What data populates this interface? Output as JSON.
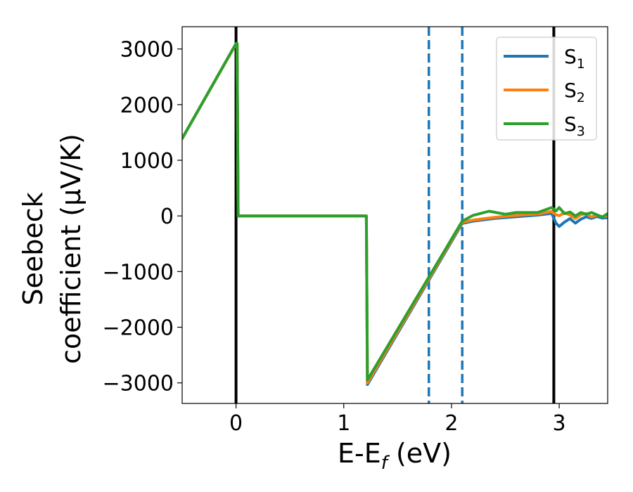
{
  "chart_data": {
    "type": "line",
    "title": "",
    "xlabel": "E-E",
    "xlabel_sub": "f",
    "xlabel_unit": " (eV)",
    "ylabel_line1": "Seebeck",
    "ylabel_line2": "coefficient  (μV/K)",
    "xlim": [
      -0.5,
      3.45
    ],
    "ylim": [
      -3370,
      3400
    ],
    "xticks": [
      0,
      1,
      2,
      3
    ],
    "xtick_labels": [
      "0",
      "1",
      "2",
      "3"
    ],
    "yticks": [
      -3000,
      -2000,
      -1000,
      0,
      1000,
      2000,
      3000
    ],
    "ytick_labels": [
      "−3000",
      "−2000",
      "−1000",
      "0",
      "1000",
      "2000",
      "3000"
    ],
    "grid": false,
    "legend_position": "upper-right",
    "series": [
      {
        "name": "S",
        "sub": "1",
        "color": "#1f77b4",
        "x": [
          -0.5,
          0.0,
          0.01,
          0.02,
          1.21,
          1.22,
          2.1,
          2.2,
          2.4,
          2.6,
          2.8,
          2.93,
          2.97,
          3.0,
          3.05,
          3.1,
          3.15,
          3.2,
          3.25,
          3.3,
          3.35,
          3.4,
          3.45
        ],
        "y": [
          1390,
          3090,
          3090,
          0,
          0,
          -3030,
          -135,
          -95,
          -45,
          -15,
          15,
          45,
          -130,
          -190,
          -110,
          -50,
          -130,
          -60,
          -15,
          -45,
          -10,
          -40,
          -30
        ]
      },
      {
        "name": "S",
        "sub": "2",
        "color": "#ff7f0e",
        "x": [
          -0.5,
          0.0,
          0.01,
          0.02,
          1.21,
          1.22,
          2.1,
          2.2,
          2.4,
          2.6,
          2.8,
          2.93,
          2.97,
          3.0,
          3.05,
          3.1,
          3.15,
          3.2,
          3.25,
          3.3,
          3.35,
          3.4,
          3.45
        ],
        "y": [
          1390,
          3090,
          3090,
          0,
          0,
          -3000,
          -115,
          -75,
          -25,
          10,
          35,
          80,
          20,
          5,
          55,
          15,
          -45,
          20,
          40,
          -20,
          15,
          -15,
          0
        ]
      },
      {
        "name": "S",
        "sub": "3",
        "color": "#2ca02c",
        "x": [
          -0.5,
          0.0,
          0.01,
          0.02,
          1.21,
          1.22,
          2.1,
          2.2,
          2.35,
          2.5,
          2.6,
          2.8,
          2.93,
          2.97,
          3.0,
          3.05,
          3.1,
          3.15,
          3.2,
          3.25,
          3.3,
          3.35,
          3.4,
          3.45
        ],
        "y": [
          1390,
          3100,
          3100,
          0,
          0,
          -2950,
          -95,
          10,
          85,
          30,
          60,
          60,
          150,
          90,
          150,
          40,
          70,
          0,
          60,
          30,
          60,
          20,
          -20,
          40
        ]
      }
    ],
    "vertical_lines": [
      {
        "x": 0.0,
        "style": "solid",
        "color": "#000000"
      },
      {
        "x": 2.95,
        "style": "solid",
        "color": "#000000"
      },
      {
        "x": 1.79,
        "style": "dashed",
        "color": "#1f77b4"
      },
      {
        "x": 2.1,
        "style": "dashed",
        "color": "#1f77b4"
      }
    ]
  }
}
